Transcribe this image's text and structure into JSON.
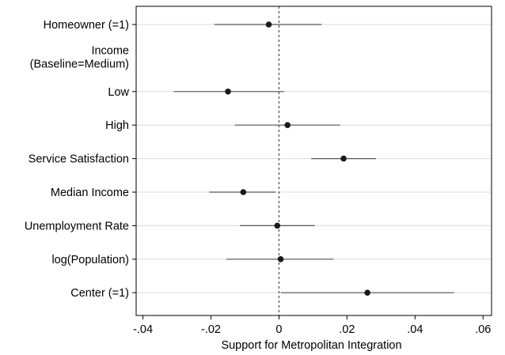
{
  "chart_data": {
    "type": "scatter",
    "subtype": "coefficient-plot",
    "title": "",
    "xlabel": "Support for Metropolitan Integration",
    "ylabel": "",
    "xlim": [
      -0.042,
      0.0625
    ],
    "x_ticks": [
      -0.04,
      -0.02,
      0,
      0.02,
      0.04,
      0.06
    ],
    "x_tick_labels": [
      "-.04",
      "-.02",
      "0",
      ".02",
      ".04",
      ".06"
    ],
    "grid": "horizontal",
    "reference_line": {
      "x": 0,
      "style": "dashed"
    },
    "legend": "none",
    "point_color": "#1a1a1a",
    "ci_color": "#555555",
    "grid_color": "#dcdcdc",
    "rows": [
      {
        "label": "Homeowner (=1)",
        "estimate": -0.003,
        "ci": [
          -0.019,
          0.0125
        ]
      },
      {
        "label": "Income\n(Baseline=Medium)",
        "heading": true
      },
      {
        "label": "Low",
        "estimate": -0.015,
        "ci": [
          -0.031,
          0.0015
        ]
      },
      {
        "label": "High",
        "estimate": 0.0025,
        "ci": [
          -0.013,
          0.018
        ]
      },
      {
        "label": "Service Satisfaction",
        "estimate": 0.019,
        "ci": [
          0.0095,
          0.0285
        ]
      },
      {
        "label": "Median Income",
        "estimate": -0.0105,
        "ci": [
          -0.0205,
          -0.001
        ]
      },
      {
        "label": "Unemployment Rate",
        "estimate": -0.0005,
        "ci": [
          -0.0115,
          0.0105
        ]
      },
      {
        "label": "log(Population)",
        "estimate": 0.0005,
        "ci": [
          -0.0155,
          0.016
        ]
      },
      {
        "label": "Center (=1)",
        "estimate": 0.026,
        "ci": [
          0.0005,
          0.0515
        ]
      }
    ]
  }
}
